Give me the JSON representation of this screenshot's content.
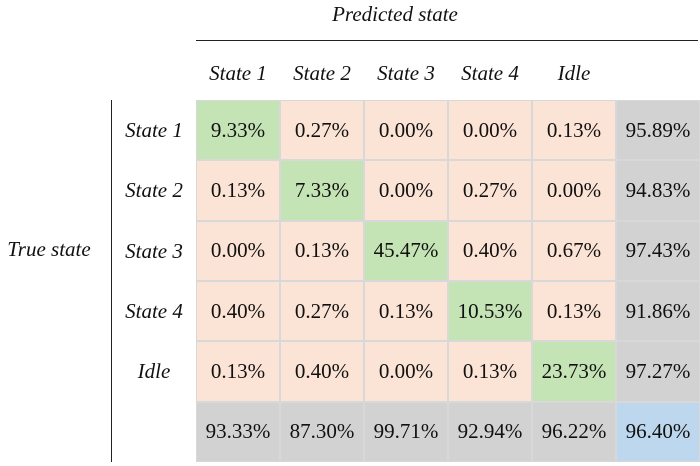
{
  "predicted_label": "Predicted state",
  "true_label": "True state",
  "colors": {
    "diagonal": "#c5e4b5",
    "off_diagonal": "#fbe3d5",
    "summary": "#d2d2d2",
    "overall": "#bdd7ee"
  },
  "chart_data": {
    "type": "heatmap",
    "xlabel": "Predicted state",
    "ylabel": "True state",
    "columns": [
      "State 1",
      "State 2",
      "State 3",
      "State 4",
      "Idle"
    ],
    "rows": [
      "State 1",
      "State 2",
      "State 3",
      "State 4",
      "Idle"
    ],
    "matrix": [
      [
        "9.33%",
        "0.27%",
        "0.00%",
        "0.00%",
        "0.13%"
      ],
      [
        "0.13%",
        "7.33%",
        "0.00%",
        "0.27%",
        "0.00%"
      ],
      [
        "0.00%",
        "0.13%",
        "45.47%",
        "0.40%",
        "0.67%"
      ],
      [
        "0.40%",
        "0.27%",
        "0.13%",
        "10.53%",
        "0.13%"
      ],
      [
        "0.13%",
        "0.40%",
        "0.00%",
        "0.13%",
        "23.73%"
      ]
    ],
    "row_summary": [
      "95.89%",
      "94.83%",
      "97.43%",
      "91.86%",
      "97.27%"
    ],
    "column_summary": [
      "93.33%",
      "87.30%",
      "99.71%",
      "92.94%",
      "96.22%"
    ],
    "overall": "96.40%"
  }
}
